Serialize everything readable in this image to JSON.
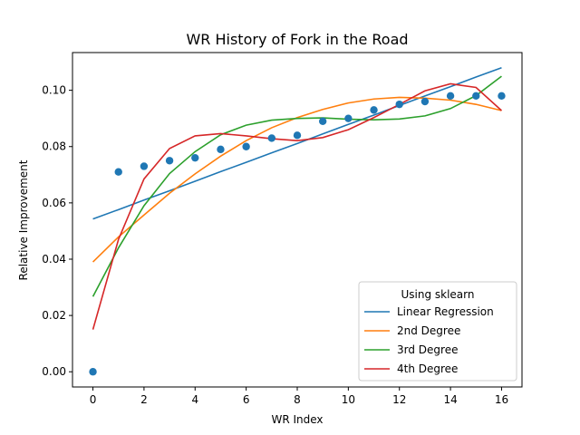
{
  "chart_data": {
    "type": "line",
    "title": "WR History of Fork in the Road",
    "xlabel": "WR Index",
    "ylabel": "Relative Improvement",
    "xlim": [
      -0.8,
      16.8
    ],
    "ylim": [
      -0.0054,
      0.1134
    ],
    "xticks": [
      0,
      2,
      4,
      6,
      8,
      10,
      12,
      14,
      16
    ],
    "xtick_labels": [
      "0",
      "2",
      "4",
      "6",
      "8",
      "10",
      "12",
      "14",
      "16"
    ],
    "yticks": [
      0.0,
      0.02,
      0.04,
      0.06,
      0.08,
      0.1
    ],
    "ytick_labels": [
      "0.00",
      "0.02",
      "0.04",
      "0.06",
      "0.08",
      "0.10"
    ],
    "grid": false,
    "scatter": {
      "color": "#1f77b4",
      "x": [
        0,
        1,
        2,
        3,
        4,
        5,
        6,
        7,
        8,
        9,
        10,
        11,
        12,
        13,
        14,
        15,
        16
      ],
      "y": [
        0.0,
        0.071,
        0.073,
        0.075,
        0.076,
        0.079,
        0.08,
        0.083,
        0.084,
        0.089,
        0.09,
        0.093,
        0.095,
        0.096,
        0.098,
        0.098,
        0.098
      ]
    },
    "legend": {
      "title": "Using sklearn",
      "position": "lower-right"
    },
    "x": [
      0,
      1,
      2,
      3,
      4,
      5,
      6,
      7,
      8,
      9,
      10,
      11,
      12,
      13,
      14,
      15,
      16
    ],
    "series": [
      {
        "name": "Linear Regression",
        "color": "#1f77b4",
        "values": [
          0.0543,
          0.0576,
          0.061,
          0.0643,
          0.0677,
          0.0711,
          0.0744,
          0.0778,
          0.0811,
          0.0845,
          0.0879,
          0.0912,
          0.0946,
          0.098,
          0.1013,
          0.1047,
          0.108
        ]
      },
      {
        "name": "2nd Degree",
        "color": "#ff7f0e",
        "values": [
          0.039,
          0.0479,
          0.0557,
          0.0634,
          0.0703,
          0.0766,
          0.0821,
          0.0867,
          0.0903,
          0.0932,
          0.0955,
          0.0969,
          0.0975,
          0.0972,
          0.0965,
          0.095,
          0.0928
        ]
      },
      {
        "name": "3rd Degree",
        "color": "#2ca02c",
        "values": [
          0.0267,
          0.044,
          0.059,
          0.0704,
          0.0782,
          0.0842,
          0.0876,
          0.0894,
          0.09,
          0.0902,
          0.0897,
          0.0895,
          0.0898,
          0.0909,
          0.0935,
          0.0981,
          0.105
        ]
      },
      {
        "name": "4th Degree",
        "color": "#d62728",
        "values": [
          0.015,
          0.047,
          0.0685,
          0.0793,
          0.0838,
          0.0846,
          0.0838,
          0.0828,
          0.0821,
          0.0832,
          0.086,
          0.0903,
          0.095,
          0.0998,
          0.1023,
          0.101,
          0.0928
        ]
      }
    ]
  }
}
